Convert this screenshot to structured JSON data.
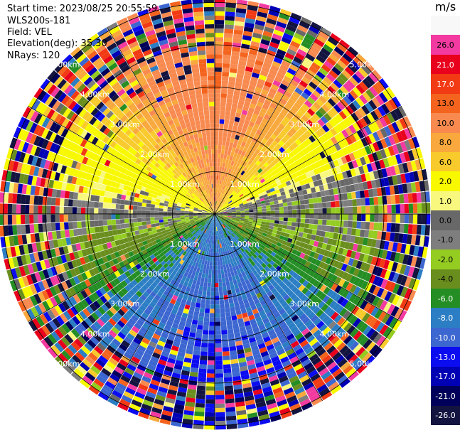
{
  "header": {
    "start_time": "Start time: 2023/08/25 20:55:59",
    "instrument": "WLS200s-181",
    "field": "Field: VEL",
    "elevation": "Elevation(deg): 35.30",
    "nrays": "NRays: 120"
  },
  "chart_data": {
    "type": "heatmap",
    "projection": "polar-ppi",
    "nrays": 120,
    "range_rings_km": [
      1.0,
      2.0,
      3.0,
      4.0,
      5.0
    ],
    "ring_labels": [
      "1.00km",
      "2.00km",
      "3.00km",
      "4.00km",
      "5.00km"
    ],
    "max_range_km": 5.1,
    "radial_lines": true,
    "crosshair": true,
    "colorbar": {
      "unit": "m/s",
      "vmin": -30.0,
      "vmax": 30.0,
      "labels": [
        "26.0",
        "21.0",
        "17.0",
        "13.0",
        "10.0",
        "8.0",
        "6.0",
        "2.0",
        "1.0",
        "0.0",
        "-1.0",
        "-2.0",
        "-4.0",
        "-6.0",
        "-8.0",
        "-10.0",
        "-13.0",
        "-17.0",
        "-21.0",
        "-26.0",
        "-30.0"
      ],
      "colors": [
        "#f8f8f8",
        "#f23aa0",
        "#e8001c",
        "#f23a14",
        "#f4641e",
        "#f88a50",
        "#f8a83c",
        "#f8ca2c",
        "#f8f800",
        "#f8f87e",
        "#686868",
        "#7e7e7e",
        "#94cc22",
        "#6a8e1e",
        "#248e24",
        "#2c7ec4",
        "#3c66d0",
        "#0c0cf0",
        "#0000b4",
        "#00005a",
        "#141440"
      ]
    },
    "velocity_field": {
      "north": 13.0,
      "east_north": 6.0,
      "west_north": 3.0,
      "south": -10.0,
      "east_south": -7.0,
      "west_south": -4.0,
      "noise_beyond_km": 4.0
    }
  }
}
